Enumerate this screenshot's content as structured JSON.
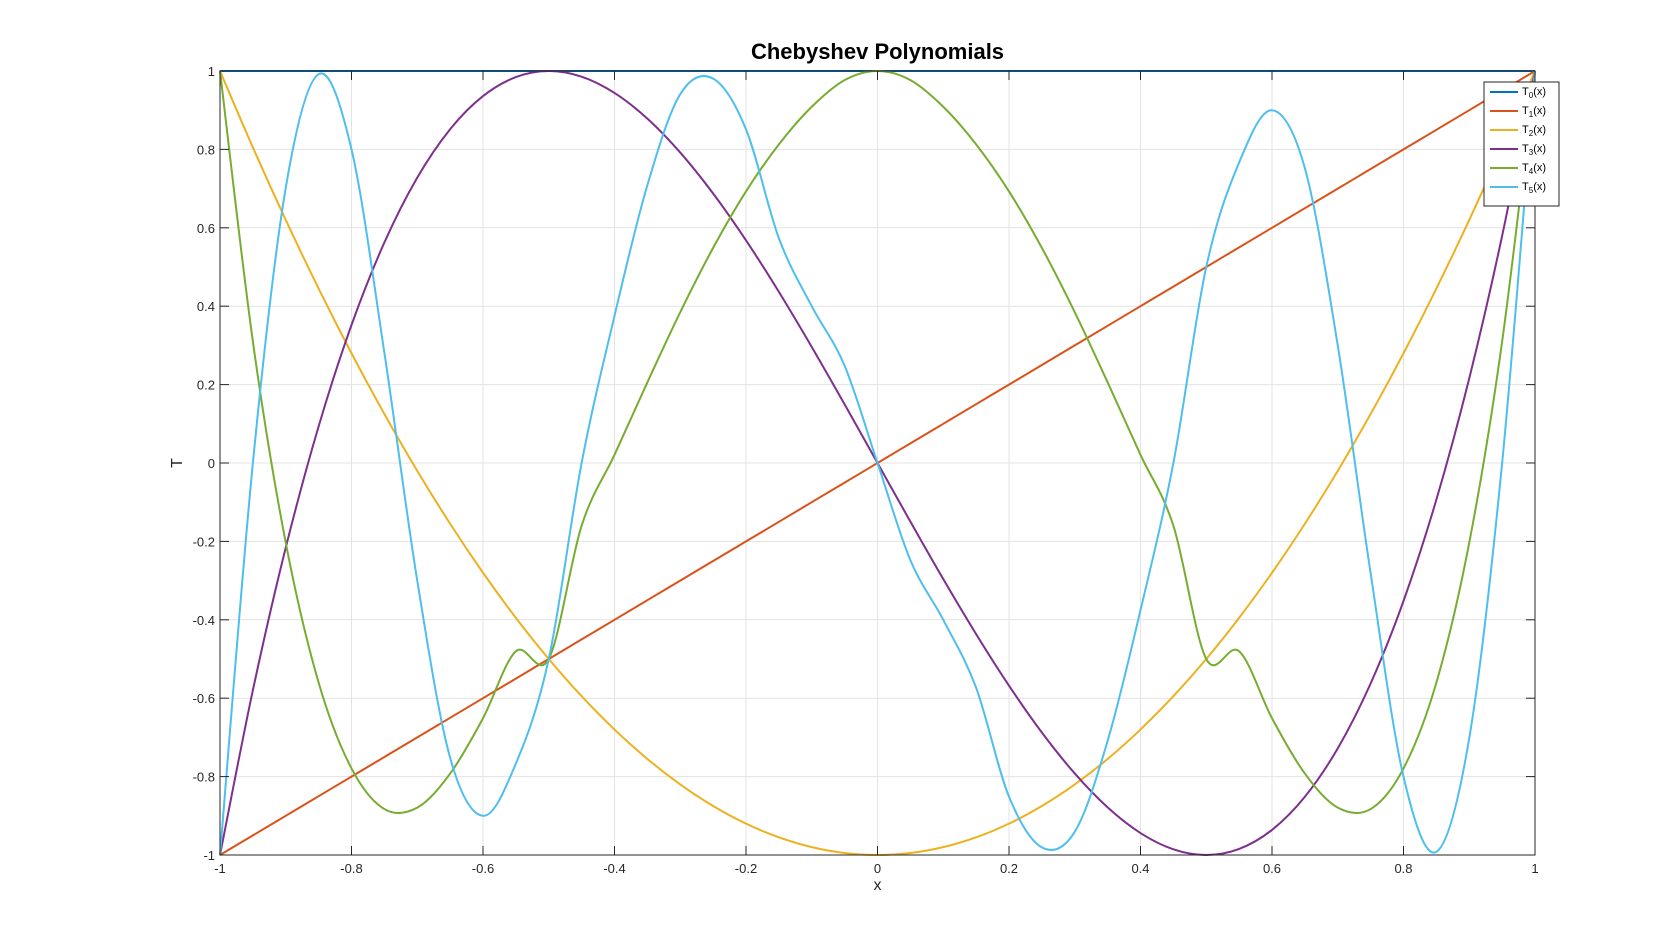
{
  "chart_data": {
    "type": "line",
    "title": "Chebyshev Polynomials",
    "xlabel": "x",
    "ylabel": "T",
    "xlim": [
      -1,
      1
    ],
    "ylim": [
      -1,
      1
    ],
    "xticks": [
      -1,
      -0.8,
      -0.6,
      -0.4,
      -0.2,
      0,
      0.2,
      0.4,
      0.6,
      0.8,
      1
    ],
    "xtick_labels": [
      "-1",
      "-0.8",
      "-0.6",
      "-0.4",
      "-0.2",
      "0",
      "0.2",
      "0.4",
      "0.6",
      "0.8",
      "1"
    ],
    "yticks": [
      -1,
      -0.8,
      -0.6,
      -0.4,
      -0.2,
      0,
      0.2,
      0.4,
      0.6,
      0.8,
      1
    ],
    "ytick_labels": [
      "-1",
      "-0.8",
      "-0.6",
      "-0.4",
      "-0.2",
      "0",
      "0.2",
      "0.4",
      "0.6",
      "0.8",
      "1"
    ],
    "grid": true,
    "legend_position": "top-right",
    "x": [
      -1,
      -0.95,
      -0.9,
      -0.85,
      -0.8,
      -0.75,
      -0.7,
      -0.65,
      -0.6,
      -0.55,
      -0.5,
      -0.45,
      -0.4,
      -0.35,
      -0.3,
      -0.25,
      -0.2,
      -0.15,
      -0.1,
      -0.05,
      0,
      0.05,
      0.1,
      0.15,
      0.2,
      0.25,
      0.3,
      0.35,
      0.4,
      0.45,
      0.5,
      0.55,
      0.6,
      0.65,
      0.7,
      0.75,
      0.8,
      0.85,
      0.9,
      0.95,
      1
    ],
    "series": [
      {
        "name": "T",
        "sub": "0",
        "suffix": "(x)",
        "color": "#0072BD",
        "values": [
          1,
          1,
          1,
          1,
          1,
          1,
          1,
          1,
          1,
          1,
          1,
          1,
          1,
          1,
          1,
          1,
          1,
          1,
          1,
          1,
          1,
          1,
          1,
          1,
          1,
          1,
          1,
          1,
          1,
          1,
          1,
          1,
          1,
          1,
          1,
          1,
          1,
          1,
          1,
          1,
          1
        ]
      },
      {
        "name": "T",
        "sub": "1",
        "suffix": "(x)",
        "color": "#D95319",
        "values": [
          -1,
          -0.95,
          -0.9,
          -0.85,
          -0.8,
          -0.75,
          -0.7,
          -0.65,
          -0.6,
          -0.55,
          -0.5,
          -0.45,
          -0.4,
          -0.35,
          -0.3,
          -0.25,
          -0.2,
          -0.15,
          -0.1,
          -0.05,
          0,
          0.05,
          0.1,
          0.15,
          0.2,
          0.25,
          0.3,
          0.35,
          0.4,
          0.45,
          0.5,
          0.55,
          0.6,
          0.65,
          0.7,
          0.75,
          0.8,
          0.85,
          0.9,
          0.95,
          1
        ]
      },
      {
        "name": "T",
        "sub": "2",
        "suffix": "(x)",
        "color": "#EDB120",
        "values": [
          1,
          0.805,
          0.62,
          0.445,
          0.28,
          0.125,
          -0.02,
          -0.155,
          -0.28,
          -0.395,
          -0.5,
          -0.595,
          -0.68,
          -0.755,
          -0.82,
          -0.875,
          -0.92,
          -0.955,
          -0.98,
          -0.995,
          -1,
          -0.995,
          -0.98,
          -0.955,
          -0.92,
          -0.875,
          -0.82,
          -0.755,
          -0.68,
          -0.595,
          -0.5,
          -0.395,
          -0.28,
          -0.155,
          -0.02,
          0.125,
          0.28,
          0.445,
          0.62,
          0.805,
          1
        ]
      },
      {
        "name": "T",
        "sub": "3",
        "suffix": "(x)",
        "color": "#7E2F8E",
        "values": [
          -1,
          -0.5795,
          -0.216,
          0.0935,
          0.352,
          0.5625,
          0.728,
          0.8515,
          0.936,
          0.9845,
          1,
          0.9855,
          0.944,
          0.8785,
          0.792,
          0.6875,
          0.568,
          0.4365,
          0.296,
          0.1495,
          0,
          -0.1495,
          -0.296,
          -0.4365,
          -0.568,
          -0.6875,
          -0.792,
          -0.8785,
          -0.944,
          -0.9855,
          -1,
          -0.9845,
          -0.936,
          -0.8515,
          -0.728,
          -0.5625,
          -0.352,
          -0.0935,
          0.216,
          0.5795,
          1
        ]
      },
      {
        "name": "T",
        "sub": "4",
        "suffix": "(x)",
        "color": "#77AC30",
        "values": [
          1,
          0.3098,
          -0.2032,
          -0.5602,
          -0.7792,
          -0.8828,
          -0.8792,
          -0.7922,
          -0.6512,
          -0.4802,
          -0.5,
          -0.1598,
          0.0208,
          0.2058,
          0.3848,
          0.5488,
          0.6928,
          0.8128,
          0.9088,
          0.9768,
          1,
          0.9768,
          0.9088,
          0.8128,
          0.6928,
          0.5488,
          0.3848,
          0.2058,
          0.0208,
          -0.1598,
          -0.5,
          -0.4802,
          -0.6512,
          -0.7922,
          -0.8792,
          -0.8828,
          -0.7792,
          -0.5602,
          -0.2032,
          0.3098,
          1
        ]
      },
      {
        "name": "T",
        "sub": "5",
        "suffix": "(x)",
        "color": "#4DBEEE",
        "values": [
          -1,
          0.0,
          0.7018,
          0.9919,
          0.8,
          0.2813,
          -0.3,
          -0.7519,
          -0.9,
          -0.7667,
          -0.5,
          0.0002,
          0.3752,
          0.7088,
          0.9408,
          0.9805,
          0.8512,
          0.5734,
          0.4,
          0.248,
          0,
          -0.248,
          -0.4,
          -0.5734,
          -0.8512,
          -0.9805,
          -0.9408,
          -0.7088,
          -0.3752,
          -0.0002,
          0.5,
          0.7667,
          0.9,
          0.7519,
          0.3,
          -0.2813,
          -0.8,
          -0.9919,
          -0.7018,
          0.0,
          1
        ]
      }
    ]
  }
}
